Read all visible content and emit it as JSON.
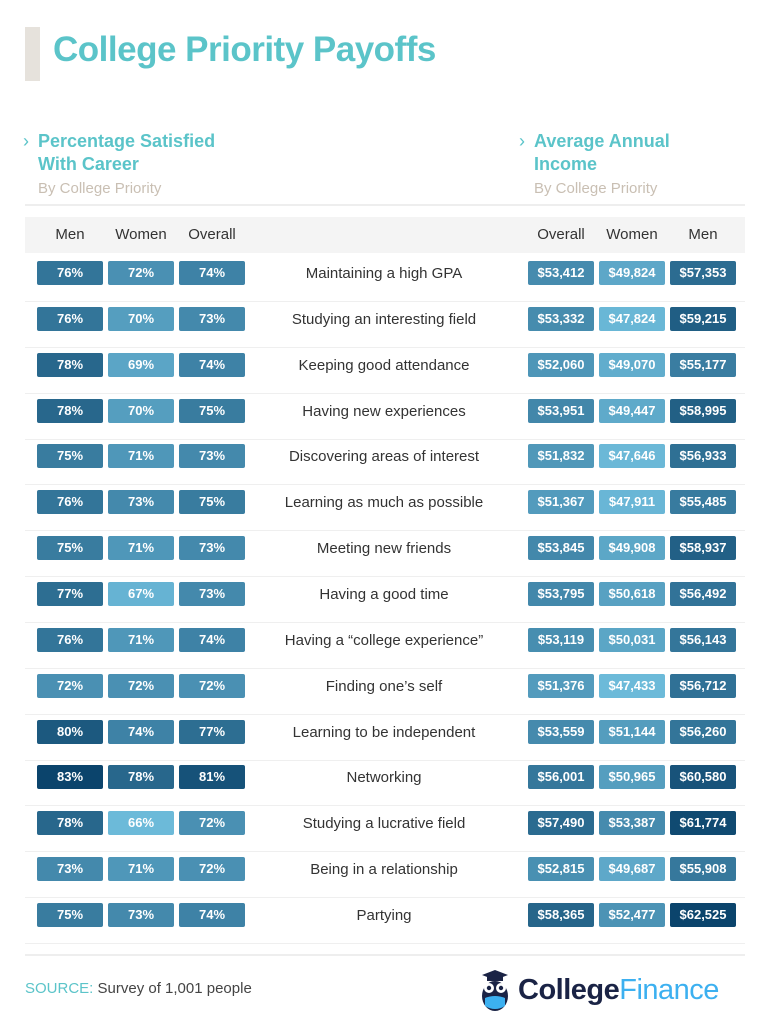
{
  "title": "College Priority Payoffs",
  "left_section": {
    "title_line1": "Percentage Satisfied",
    "title_line2": "With Career",
    "subtitle": "By College Priority"
  },
  "right_section": {
    "title_line1": "Average Annual",
    "title_line2": "Income",
    "subtitle": "By College Priority"
  },
  "icons": {
    "section_marker": "chevron-right-icon",
    "logo": "owl-graduation-cap-icon"
  },
  "colors": {
    "title": "#5bc4c9",
    "scale_light": "#6cbad9",
    "scale_dark": "#0b446c"
  },
  "footer": {
    "source_label": "SOURCE:",
    "source_text": "Survey of 1,001 people",
    "logo_part1": "College",
    "logo_part2": "Finance"
  },
  "chart_data": {
    "type": "table",
    "title": "College Priority Payoffs",
    "left_columns": [
      "Men",
      "Women",
      "Overall"
    ],
    "right_columns": [
      "Overall",
      "Women",
      "Men"
    ],
    "rows": [
      {
        "priority": "Maintaining a high GPA",
        "satisfied": {
          "men": "76%",
          "women": "72%",
          "overall": "74%"
        },
        "income": {
          "overall": "$53,412",
          "women": "$49,824",
          "men": "$57,353"
        }
      },
      {
        "priority": "Studying an interesting field",
        "satisfied": {
          "men": "76%",
          "women": "70%",
          "overall": "73%"
        },
        "income": {
          "overall": "$53,332",
          "women": "$47,824",
          "men": "$59,215"
        }
      },
      {
        "priority": "Keeping good attendance",
        "satisfied": {
          "men": "78%",
          "women": "69%",
          "overall": "74%"
        },
        "income": {
          "overall": "$52,060",
          "women": "$49,070",
          "men": "$55,177"
        }
      },
      {
        "priority": "Having new experiences",
        "satisfied": {
          "men": "78%",
          "women": "70%",
          "overall": "75%"
        },
        "income": {
          "overall": "$53,951",
          "women": "$49,447",
          "men": "$58,995"
        }
      },
      {
        "priority": "Discovering areas of interest",
        "satisfied": {
          "men": "75%",
          "women": "71%",
          "overall": "73%"
        },
        "income": {
          "overall": "$51,832",
          "women": "$47,646",
          "men": "$56,933"
        }
      },
      {
        "priority": "Learning as much as possible",
        "satisfied": {
          "men": "76%",
          "women": "73%",
          "overall": "75%"
        },
        "income": {
          "overall": "$51,367",
          "women": "$47,911",
          "men": "$55,485"
        }
      },
      {
        "priority": "Meeting new friends",
        "satisfied": {
          "men": "75%",
          "women": "71%",
          "overall": "73%"
        },
        "income": {
          "overall": "$53,845",
          "women": "$49,908",
          "men": "$58,937"
        }
      },
      {
        "priority": "Having a good time",
        "satisfied": {
          "men": "77%",
          "women": "67%",
          "overall": "73%"
        },
        "income": {
          "overall": "$53,795",
          "women": "$50,618",
          "men": "$56,492"
        }
      },
      {
        "priority": "Having a “college experience”",
        "satisfied": {
          "men": "76%",
          "women": "71%",
          "overall": "74%"
        },
        "income": {
          "overall": "$53,119",
          "women": "$50,031",
          "men": "$56,143"
        }
      },
      {
        "priority": "Finding one’s self",
        "satisfied": {
          "men": "72%",
          "women": "72%",
          "overall": "72%"
        },
        "income": {
          "overall": "$51,376",
          "women": "$47,433",
          "men": "$56,712"
        }
      },
      {
        "priority": "Learning to be independent",
        "satisfied": {
          "men": "80%",
          "women": "74%",
          "overall": "77%"
        },
        "income": {
          "overall": "$53,559",
          "women": "$51,144",
          "men": "$56,260"
        }
      },
      {
        "priority": "Networking",
        "satisfied": {
          "men": "83%",
          "women": "78%",
          "overall": "81%"
        },
        "income": {
          "overall": "$56,001",
          "women": "$50,965",
          "men": "$60,580"
        }
      },
      {
        "priority": "Studying a lucrative field",
        "satisfied": {
          "men": "78%",
          "women": "66%",
          "overall": "72%"
        },
        "income": {
          "overall": "$57,490",
          "women": "$53,387",
          "men": "$61,774"
        }
      },
      {
        "priority": "Being in a relationship",
        "satisfied": {
          "men": "73%",
          "women": "71%",
          "overall": "72%"
        },
        "income": {
          "overall": "$52,815",
          "women": "$49,687",
          "men": "$55,908"
        }
      },
      {
        "priority": "Partying",
        "satisfied": {
          "men": "75%",
          "women": "73%",
          "overall": "74%"
        },
        "income": {
          "overall": "$58,365",
          "women": "$52,477",
          "men": "$62,525"
        }
      }
    ]
  }
}
